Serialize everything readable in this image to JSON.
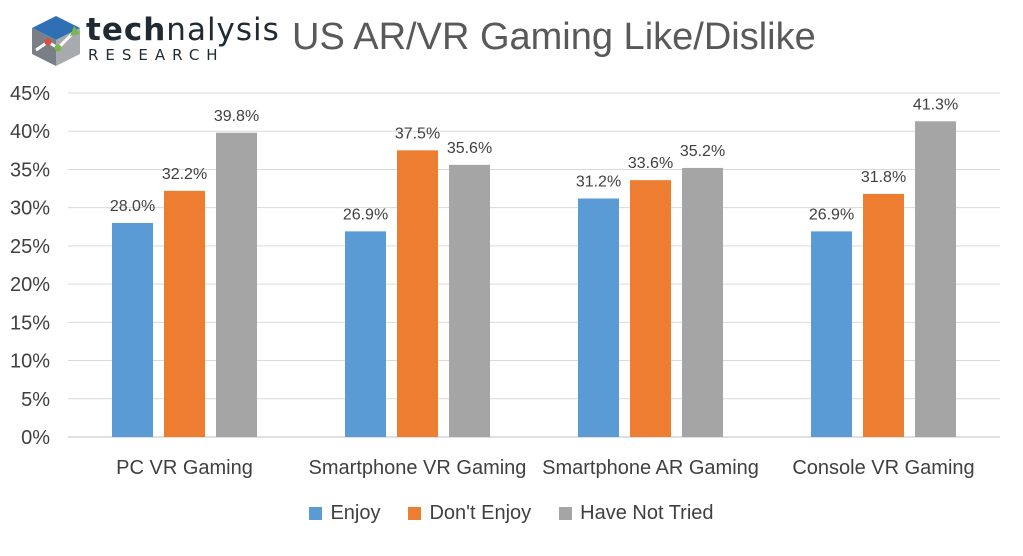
{
  "logo": {
    "word_tech": "tech",
    "word_rest": "nalysis",
    "sub": "RESEARCH",
    "colors": {
      "blue": "#2f6fb3",
      "green": "#7ab648",
      "red": "#e04b3a"
    }
  },
  "colors": {
    "enjoy": "#5b9bd5",
    "dont_enjoy": "#ed7d31",
    "not_tried": "#a5a5a5",
    "grid": "#d9d9d9",
    "axis": "#bfbfbf"
  },
  "chart_data": {
    "type": "bar",
    "title": "US AR/VR Gaming Like/Dislike",
    "categories": [
      "PC VR Gaming",
      "Smartphone VR Gaming",
      "Smartphone AR Gaming",
      "Console VR Gaming"
    ],
    "series": [
      {
        "name": "Enjoy",
        "values": [
          28.0,
          26.9,
          31.2,
          26.9
        ],
        "labels": [
          "28.0%",
          "26.9%",
          "31.2%",
          "26.9%"
        ]
      },
      {
        "name": "Don't Enjoy",
        "values": [
          32.2,
          37.5,
          33.6,
          31.8
        ],
        "labels": [
          "32.2%",
          "37.5%",
          "33.6%",
          "31.8%"
        ]
      },
      {
        "name": "Have Not Tried",
        "values": [
          39.8,
          35.6,
          35.2,
          41.3
        ],
        "labels": [
          "39.8%",
          "35.6%",
          "35.2%",
          "41.3%"
        ]
      }
    ],
    "ylim": [
      0,
      45
    ],
    "yticks": [
      "0%",
      "5%",
      "10%",
      "15%",
      "20%",
      "25%",
      "30%",
      "35%",
      "40%",
      "45%"
    ],
    "grid": true,
    "legend_position": "bottom"
  }
}
